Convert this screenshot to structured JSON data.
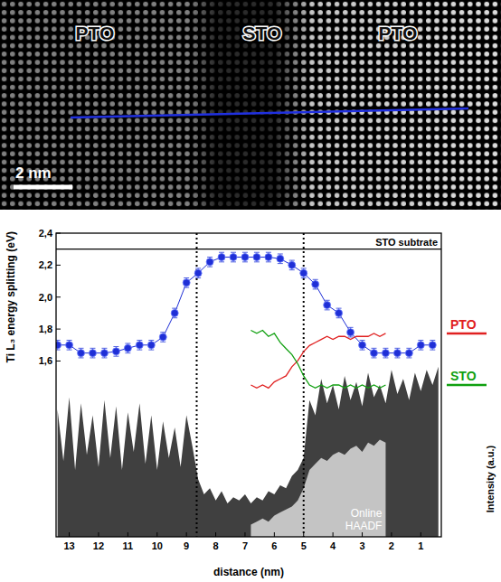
{
  "image": {
    "labels": [
      "PTO",
      "STO",
      "PTO"
    ],
    "scale_bar": "2 nm"
  },
  "chart_data": {
    "type": "line",
    "xlabel": "distance (nm)",
    "ylabel": "Ti L₃ energy splitting (eV)",
    "y2label": "Intensity (a.u.)",
    "xlim": [
      13.45,
      0.3
    ],
    "xticks": [
      13,
      12,
      11,
      10,
      9,
      8,
      7,
      6,
      5,
      4,
      3,
      2,
      1
    ],
    "ylim": [
      0.5,
      2.4
    ],
    "yticks": [
      {
        "value": 1.6,
        "label": "1,6"
      },
      {
        "value": 1.8,
        "label": "1,8"
      },
      {
        "value": 2.0,
        "label": "2,0"
      },
      {
        "value": 2.2,
        "label": "2,2"
      },
      {
        "value": 2.4,
        "label": "2,4"
      }
    ],
    "y2lim": [
      0,
      1
    ],
    "legend": "right",
    "series": [
      {
        "type": "line",
        "marker": "circle",
        "color": "#1f2fd6",
        "x": [
          13.4,
          13.0,
          12.6,
          12.2,
          11.8,
          11.4,
          11.0,
          10.6,
          10.2,
          9.8,
          9.4,
          9.0,
          8.6,
          8.2,
          7.8,
          7.4,
          7.0,
          6.6,
          6.2,
          5.8,
          5.4,
          5.0,
          4.6,
          4.2,
          3.8,
          3.4,
          3.0,
          2.6,
          2.2,
          1.8,
          1.4,
          1.0,
          0.6
        ],
        "values": [
          1.7,
          1.7,
          1.65,
          1.65,
          1.65,
          1.66,
          1.68,
          1.7,
          1.7,
          1.75,
          1.9,
          2.09,
          2.15,
          2.22,
          2.25,
          2.25,
          2.25,
          2.25,
          2.25,
          2.24,
          2.2,
          2.15,
          2.08,
          1.95,
          1.9,
          1.78,
          1.7,
          1.65,
          1.65,
          1.65,
          1.65,
          1.7,
          1.7
        ],
        "errors": [
          0.03,
          0.03,
          0.03,
          0.03,
          0.03,
          0.03,
          0.03,
          0.03,
          0.03,
          0.03,
          0.03,
          0.03,
          0.03,
          0.03,
          0.03,
          0.03,
          0.03,
          0.03,
          0.03,
          0.03,
          0.03,
          0.03,
          0.03,
          0.03,
          0.03,
          0.03,
          0.03,
          0.03,
          0.03,
          0.03,
          0.03,
          0.03,
          0.03
        ]
      },
      {
        "type": "area",
        "axis": "y2",
        "color": "#404040",
        "x": [
          13.4,
          13.2,
          13.0,
          12.8,
          12.6,
          12.4,
          12.2,
          12.0,
          11.8,
          11.6,
          11.4,
          11.2,
          11.0,
          10.8,
          10.6,
          10.4,
          10.2,
          10.0,
          9.8,
          9.6,
          9.4,
          9.2,
          9.0,
          8.8,
          8.6,
          8.4,
          8.2,
          8.0,
          7.8,
          7.6,
          7.4,
          7.2,
          7.0,
          6.8,
          6.6,
          6.4,
          6.2,
          6.0,
          5.8,
          5.6,
          5.4,
          5.2,
          5.0,
          4.8,
          4.6,
          4.4,
          4.2,
          4.0,
          3.8,
          3.6,
          3.4,
          3.2,
          3.0,
          2.8,
          2.6,
          2.4,
          2.2,
          2.0,
          1.8,
          1.6,
          1.4,
          1.2,
          1.0,
          0.8,
          0.6,
          0.4
        ],
        "values": [
          0.42,
          0.25,
          0.46,
          0.22,
          0.44,
          0.27,
          0.4,
          0.23,
          0.45,
          0.26,
          0.43,
          0.22,
          0.41,
          0.28,
          0.44,
          0.24,
          0.4,
          0.22,
          0.38,
          0.26,
          0.36,
          0.23,
          0.4,
          0.3,
          0.19,
          0.14,
          0.16,
          0.12,
          0.15,
          0.11,
          0.13,
          0.12,
          0.14,
          0.11,
          0.13,
          0.12,
          0.15,
          0.14,
          0.17,
          0.16,
          0.2,
          0.22,
          0.26,
          0.45,
          0.4,
          0.52,
          0.44,
          0.5,
          0.42,
          0.53,
          0.45,
          0.51,
          0.43,
          0.54,
          0.46,
          0.5,
          0.44,
          0.55,
          0.47,
          0.52,
          0.45,
          0.54,
          0.48,
          0.55,
          0.5,
          0.56
        ]
      },
      {
        "name": "Online HAADF",
        "type": "area",
        "axis": "y2",
        "color": "#c4c4c4",
        "x": [
          6.8,
          6.6,
          6.4,
          6.2,
          6.0,
          5.8,
          5.6,
          5.4,
          5.2,
          5.0,
          4.8,
          4.6,
          4.4,
          4.2,
          4.0,
          3.8,
          3.6,
          3.4,
          3.2,
          3.0,
          2.8,
          2.6,
          2.4,
          2.2
        ],
        "values": [
          0.04,
          0.05,
          0.06,
          0.05,
          0.07,
          0.08,
          0.09,
          0.1,
          0.12,
          0.16,
          0.22,
          0.24,
          0.26,
          0.25,
          0.27,
          0.28,
          0.27,
          0.29,
          0.3,
          0.28,
          0.31,
          0.3,
          0.32,
          0.31
        ]
      },
      {
        "name": "PTO",
        "type": "line",
        "axis": "y2",
        "color": "#e02020",
        "x": [
          6.8,
          6.6,
          6.4,
          6.2,
          6.0,
          5.8,
          5.6,
          5.4,
          5.2,
          5.0,
          4.8,
          4.6,
          4.4,
          4.2,
          4.0,
          3.8,
          3.6,
          3.4,
          3.2,
          3.0,
          2.8,
          2.6,
          2.4,
          2.2
        ],
        "values": [
          0.5,
          0.49,
          0.5,
          0.49,
          0.51,
          0.52,
          0.53,
          0.56,
          0.58,
          0.61,
          0.63,
          0.64,
          0.65,
          0.66,
          0.65,
          0.66,
          0.66,
          0.65,
          0.66,
          0.66,
          0.66,
          0.67,
          0.66,
          0.67
        ]
      },
      {
        "name": "STO",
        "type": "line",
        "axis": "y2",
        "color": "#10a010",
        "x": [
          6.8,
          6.6,
          6.4,
          6.2,
          6.0,
          5.8,
          5.6,
          5.4,
          5.2,
          5.0,
          4.8,
          4.6,
          4.4,
          4.2,
          4.0,
          3.8,
          3.6,
          3.4,
          3.2,
          3.0,
          2.8,
          2.6,
          2.4,
          2.2
        ],
        "values": [
          0.68,
          0.67,
          0.68,
          0.66,
          0.67,
          0.64,
          0.62,
          0.6,
          0.57,
          0.53,
          0.5,
          0.49,
          0.5,
          0.49,
          0.5,
          0.5,
          0.49,
          0.5,
          0.49,
          0.5,
          0.49,
          0.5,
          0.49,
          0.5
        ]
      }
    ],
    "annotations": [
      {
        "text": "STO subtrate",
        "y": 2.3
      }
    ],
    "vlines": [
      8.65,
      5.0
    ]
  }
}
